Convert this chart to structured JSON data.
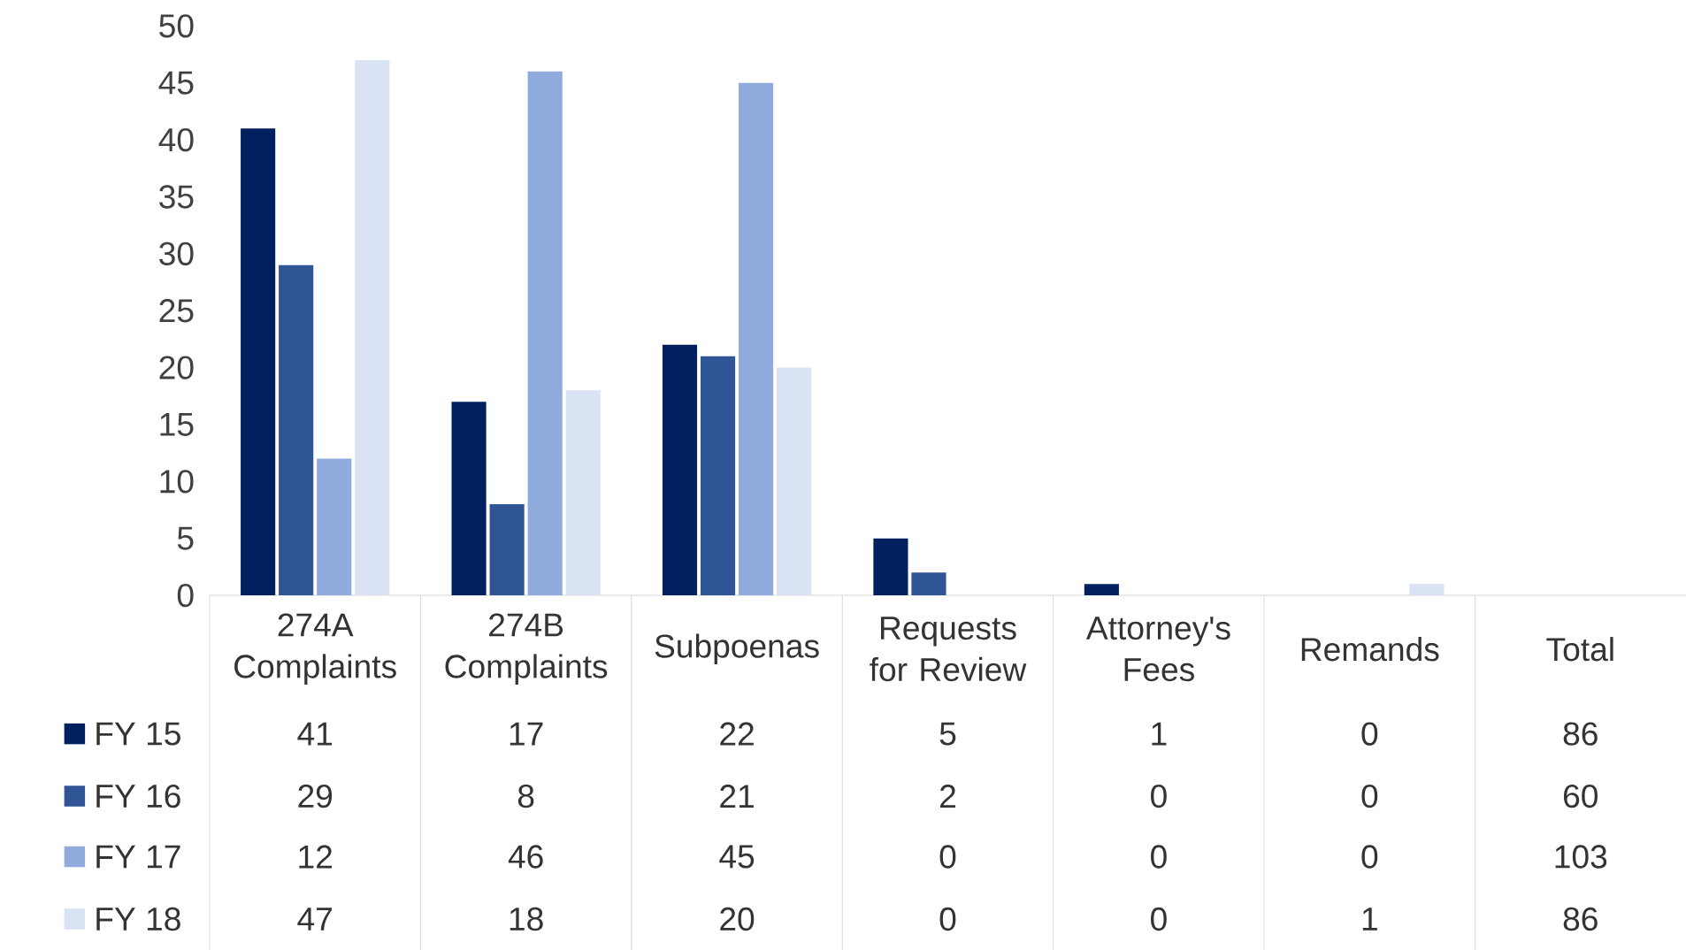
{
  "chart_data": {
    "type": "bar",
    "categories": [
      "274A Complaints",
      "274B Complaints",
      "Subpoenas",
      "Requests for Review",
      "Attorney's Fees",
      "Remands",
      "Total"
    ],
    "series": [
      {
        "name": "FY 15",
        "color": "#002060",
        "values": [
          41,
          17,
          22,
          5,
          1,
          0,
          null
        ],
        "value_labels": [
          "41",
          "17",
          "22",
          "5",
          "1",
          "0",
          "86"
        ]
      },
      {
        "name": "FY 16",
        "color": "#2f5597",
        "values": [
          29,
          8,
          21,
          2,
          0,
          0,
          null
        ],
        "value_labels": [
          "29",
          "8",
          "21",
          "2",
          "0",
          "0",
          "60"
        ]
      },
      {
        "name": "FY 17",
        "color": "#8faadc",
        "values": [
          12,
          46,
          45,
          0,
          0,
          0,
          null
        ],
        "value_labels": [
          "12",
          "46",
          "45",
          "0",
          "0",
          "0",
          "103"
        ]
      },
      {
        "name": "FY 18",
        "color": "#dae3f3",
        "values": [
          47,
          18,
          20,
          0,
          0,
          1,
          null
        ],
        "value_labels": [
          "47",
          "18",
          "20",
          "0",
          "0",
          "1",
          "86"
        ]
      }
    ],
    "ylim": [
      0,
      50
    ],
    "yticks": [
      0,
      5,
      10,
      15,
      20,
      25,
      30,
      35,
      40,
      45,
      50
    ],
    "legend": "bottom left"
  }
}
